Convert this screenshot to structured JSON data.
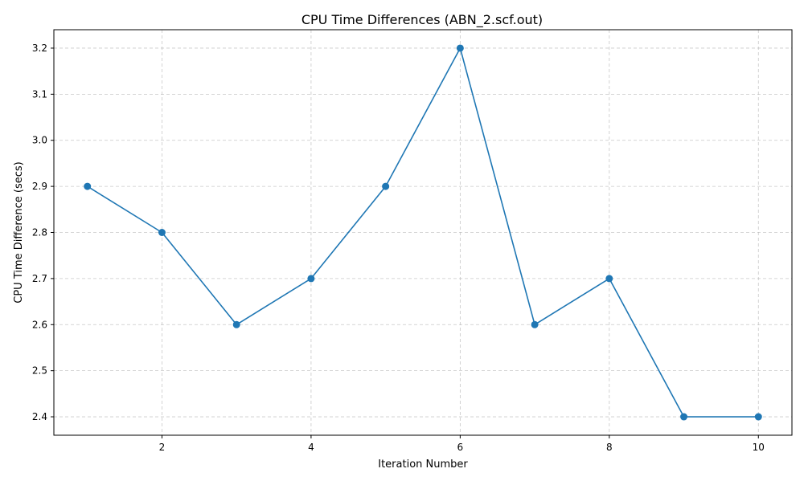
{
  "chart_data": {
    "type": "line",
    "title": "CPU Time Differences (ABN_2.scf.out)",
    "xlabel": "Iteration Number",
    "ylabel": "CPU Time Difference (secs)",
    "xlim": [
      0.55,
      10.45
    ],
    "ylim": [
      2.36,
      3.24
    ],
    "xticks": [
      2,
      4,
      6,
      8,
      10
    ],
    "yticks": [
      2.4,
      2.5,
      2.6,
      2.7,
      2.8,
      2.9,
      3.0,
      3.1,
      3.2
    ],
    "grid": true,
    "legend": "none",
    "series": [
      {
        "color": "#1f77b4",
        "marker": "circle",
        "x": [
          1,
          2,
          3,
          4,
          5,
          6,
          7,
          8,
          9,
          10
        ],
        "y": [
          2.9,
          2.8,
          2.6,
          2.7,
          2.9,
          3.2,
          2.6,
          2.7,
          2.4,
          2.4
        ]
      }
    ]
  }
}
